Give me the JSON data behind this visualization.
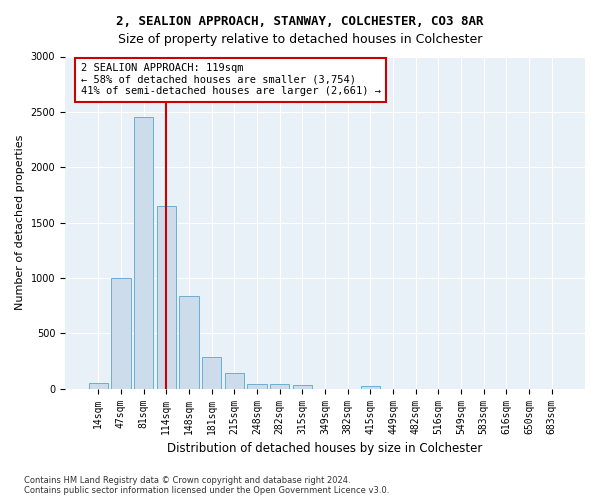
{
  "title1": "2, SEALION APPROACH, STANWAY, COLCHESTER, CO3 8AR",
  "title2": "Size of property relative to detached houses in Colchester",
  "xlabel": "Distribution of detached houses by size in Colchester",
  "ylabel": "Number of detached properties",
  "bar_labels": [
    "14sqm",
    "47sqm",
    "81sqm",
    "114sqm",
    "148sqm",
    "181sqm",
    "215sqm",
    "248sqm",
    "282sqm",
    "315sqm",
    "349sqm",
    "382sqm",
    "415sqm",
    "449sqm",
    "482sqm",
    "516sqm",
    "549sqm",
    "583sqm",
    "616sqm",
    "650sqm",
    "683sqm"
  ],
  "bar_values": [
    55,
    1000,
    2450,
    1650,
    835,
    290,
    145,
    45,
    45,
    35,
    0,
    0,
    25,
    0,
    0,
    0,
    0,
    0,
    0,
    0,
    0
  ],
  "bar_color": "#ccdceb",
  "bar_edgecolor": "#6baed6",
  "vline_index": 3,
  "vline_color": "#cc0000",
  "annotation_text": "2 SEALION APPROACH: 119sqm\n← 58% of detached houses are smaller (3,754)\n41% of semi-detached houses are larger (2,661) →",
  "annotation_box_facecolor": "#ffffff",
  "annotation_box_edgecolor": "#cc0000",
  "ylim": [
    0,
    3000
  ],
  "yticks": [
    0,
    500,
    1000,
    1500,
    2000,
    2500,
    3000
  ],
  "footnote": "Contains HM Land Registry data © Crown copyright and database right 2024.\nContains public sector information licensed under the Open Government Licence v3.0.",
  "fig_facecolor": "#ffffff",
  "plot_facecolor": "#e8f0f8",
  "title1_fontsize": 9,
  "title2_fontsize": 9,
  "xlabel_fontsize": 8.5,
  "ylabel_fontsize": 8,
  "tick_fontsize": 7,
  "annot_fontsize": 7.5,
  "footnote_fontsize": 6
}
